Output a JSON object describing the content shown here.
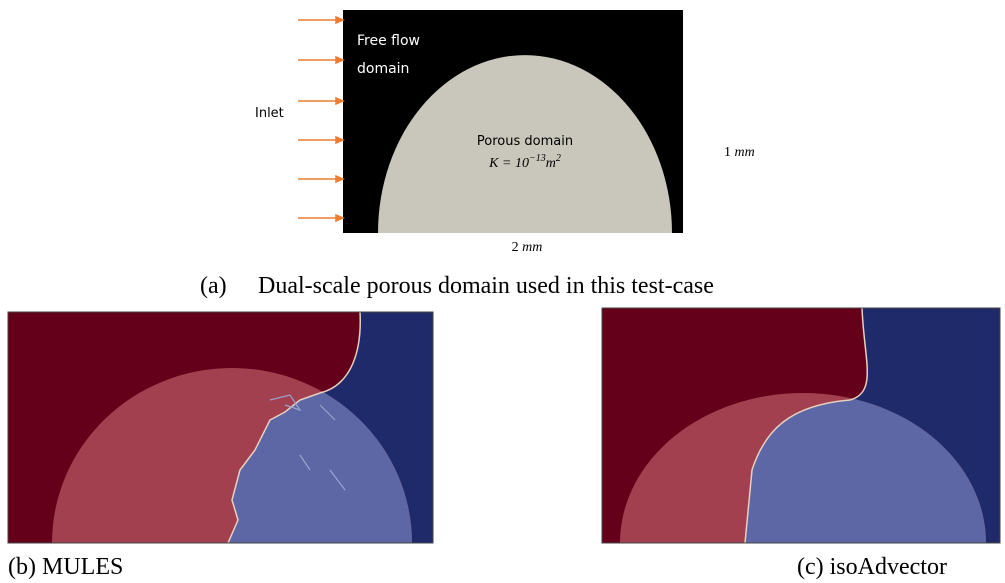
{
  "panel_a": {
    "inlet_label": "Inlet",
    "free_flow_line1": "Free flow",
    "free_flow_line2": "domain",
    "porous_label": "Porous domain",
    "permeability": "K = 10",
    "permeability_exp": "−13",
    "permeability_unit": "m",
    "permeability_unit_exp": "2",
    "height_value": "1",
    "height_unit": "mm",
    "width_value": "2",
    "width_unit": "mm",
    "caption_letter": "(a)",
    "caption": "Dual-scale porous domain used in this test-case"
  },
  "panel_b": {
    "caption": "(b) MULES"
  },
  "panel_c": {
    "caption": "(c) isoAdvector"
  }
}
